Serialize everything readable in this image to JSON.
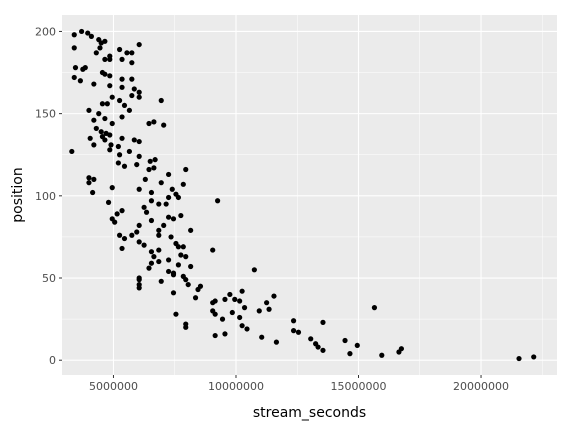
{
  "chart_data": {
    "type": "scatter",
    "xlabel": "stream_seconds",
    "ylabel": "position",
    "xlim": [
      2900000,
      23100000
    ],
    "ylim": [
      -9,
      210
    ],
    "x_ticks": [
      {
        "value": 5000000,
        "label": "5000000"
      },
      {
        "value": 10000000,
        "label": "10000000"
      },
      {
        "value": 15000000,
        "label": "15000000"
      },
      {
        "value": 20000000,
        "label": "20000000"
      }
    ],
    "y_ticks": [
      {
        "value": 0,
        "label": "0"
      },
      {
        "value": 50,
        "label": "50"
      },
      {
        "value": 100,
        "label": "100"
      },
      {
        "value": 150,
        "label": "150"
      },
      {
        "value": 200,
        "label": "200"
      }
    ],
    "grid": true,
    "colors": {
      "panel": "#ebebeb",
      "grid": "#ffffff",
      "point": "#000000"
    },
    "points": [
      [
        3400000,
        198
      ],
      [
        3700000,
        200
      ],
      [
        3950000,
        199
      ],
      [
        4100000,
        197
      ],
      [
        4400000,
        195
      ],
      [
        4500000,
        193
      ],
      [
        4650000,
        194
      ],
      [
        4450000,
        190
      ],
      [
        5250000,
        189
      ],
      [
        5550000,
        187
      ],
      [
        5750000,
        187
      ],
      [
        6050000,
        192
      ],
      [
        4300000,
        187
      ],
      [
        4850000,
        185
      ],
      [
        3400000,
        190
      ],
      [
        4650000,
        183
      ],
      [
        5350000,
        183
      ],
      [
        5750000,
        181
      ],
      [
        4850000,
        183
      ],
      [
        3450000,
        178
      ],
      [
        3750000,
        177
      ],
      [
        3850000,
        178
      ],
      [
        4550000,
        175
      ],
      [
        4650000,
        174
      ],
      [
        4850000,
        173
      ],
      [
        5350000,
        171
      ],
      [
        5750000,
        171
      ],
      [
        3400000,
        172
      ],
      [
        3650000,
        170
      ],
      [
        4200000,
        168
      ],
      [
        4850000,
        167
      ],
      [
        5350000,
        166
      ],
      [
        5850000,
        165
      ],
      [
        6050000,
        163
      ],
      [
        5750000,
        161
      ],
      [
        6050000,
        160
      ],
      [
        4950000,
        160
      ],
      [
        5250000,
        158
      ],
      [
        6950000,
        158
      ],
      [
        4550000,
        156
      ],
      [
        4750000,
        156
      ],
      [
        5450000,
        155
      ],
      [
        5650000,
        152
      ],
      [
        4000000,
        152
      ],
      [
        4400000,
        150
      ],
      [
        4200000,
        146
      ],
      [
        4650000,
        147
      ],
      [
        5350000,
        148
      ],
      [
        4950000,
        144
      ],
      [
        6450000,
        144
      ],
      [
        6650000,
        145
      ],
      [
        7050000,
        143
      ],
      [
        4300000,
        141
      ],
      [
        4500000,
        139
      ],
      [
        4700000,
        138
      ],
      [
        4850000,
        137
      ],
      [
        4550000,
        136
      ],
      [
        4650000,
        134
      ],
      [
        4050000,
        135
      ],
      [
        5350000,
        135
      ],
      [
        5850000,
        134
      ],
      [
        6050000,
        133
      ],
      [
        4200000,
        131
      ],
      [
        4900000,
        131
      ],
      [
        5200000,
        130
      ],
      [
        4850000,
        128
      ],
      [
        5650000,
        127
      ],
      [
        3300000,
        127
      ],
      [
        5250000,
        125
      ],
      [
        6050000,
        124
      ],
      [
        6500000,
        121
      ],
      [
        6700000,
        122
      ],
      [
        5200000,
        120
      ],
      [
        5450000,
        118
      ],
      [
        5950000,
        119
      ],
      [
        6450000,
        116
      ],
      [
        6650000,
        117
      ],
      [
        7250000,
        113
      ],
      [
        7950000,
        116
      ],
      [
        4000000,
        111
      ],
      [
        4200000,
        110
      ],
      [
        4000000,
        108
      ],
      [
        6300000,
        110
      ],
      [
        6950000,
        108
      ],
      [
        7400000,
        104
      ],
      [
        7850000,
        107
      ],
      [
        4950000,
        105
      ],
      [
        6050000,
        104
      ],
      [
        6550000,
        102
      ],
      [
        7550000,
        101
      ],
      [
        4150000,
        102
      ],
      [
        7250000,
        99
      ],
      [
        6550000,
        97
      ],
      [
        7650000,
        99
      ],
      [
        9250000,
        97
      ],
      [
        4800000,
        96
      ],
      [
        6250000,
        93
      ],
      [
        6850000,
        95
      ],
      [
        7150000,
        95
      ],
      [
        5350000,
        91
      ],
      [
        6350000,
        90
      ],
      [
        7250000,
        87
      ],
      [
        7750000,
        88
      ],
      [
        5150000,
        89
      ],
      [
        4950000,
        86
      ],
      [
        5050000,
        84
      ],
      [
        6550000,
        85
      ],
      [
        7450000,
        86
      ],
      [
        6050000,
        82
      ],
      [
        7050000,
        82
      ],
      [
        6850000,
        79
      ],
      [
        5950000,
        78
      ],
      [
        8150000,
        79
      ],
      [
        6850000,
        76
      ],
      [
        7350000,
        75
      ],
      [
        5250000,
        76
      ],
      [
        5450000,
        74
      ],
      [
        5750000,
        76
      ],
      [
        6050000,
        72
      ],
      [
        6250000,
        70
      ],
      [
        7550000,
        71
      ],
      [
        7650000,
        69
      ],
      [
        7850000,
        69
      ],
      [
        9050000,
        67
      ],
      [
        5350000,
        68
      ],
      [
        6550000,
        66
      ],
      [
        6850000,
        67
      ],
      [
        6650000,
        63
      ],
      [
        7750000,
        64
      ],
      [
        7950000,
        63
      ],
      [
        6550000,
        59
      ],
      [
        6850000,
        60
      ],
      [
        7250000,
        61
      ],
      [
        7650000,
        58
      ],
      [
        8150000,
        57
      ],
      [
        6450000,
        56
      ],
      [
        7250000,
        54
      ],
      [
        7450000,
        53
      ],
      [
        7850000,
        51
      ],
      [
        7450000,
        52
      ],
      [
        6050000,
        49
      ],
      [
        6050000,
        50
      ],
      [
        7950000,
        49
      ],
      [
        10750000,
        55
      ],
      [
        6950000,
        48
      ],
      [
        6050000,
        46
      ],
      [
        6050000,
        44
      ],
      [
        7450000,
        41
      ],
      [
        8450000,
        43
      ],
      [
        8550000,
        45
      ],
      [
        8050000,
        46
      ],
      [
        8350000,
        38
      ],
      [
        9050000,
        35
      ],
      [
        9150000,
        36
      ],
      [
        9550000,
        37
      ],
      [
        9750000,
        40
      ],
      [
        9950000,
        37
      ],
      [
        10250000,
        42
      ],
      [
        10150000,
        36
      ],
      [
        11250000,
        35
      ],
      [
        11550000,
        39
      ],
      [
        11350000,
        31
      ],
      [
        10950000,
        30
      ],
      [
        10350000,
        32
      ],
      [
        9050000,
        30
      ],
      [
        9150000,
        28
      ],
      [
        9850000,
        29
      ],
      [
        10150000,
        26
      ],
      [
        7550000,
        28
      ],
      [
        7950000,
        22
      ],
      [
        7950000,
        20
      ],
      [
        9450000,
        25
      ],
      [
        12350000,
        24
      ],
      [
        13550000,
        23
      ],
      [
        15650000,
        32
      ],
      [
        12350000,
        18
      ],
      [
        12550000,
        17
      ],
      [
        10250000,
        21
      ],
      [
        10450000,
        19
      ],
      [
        9550000,
        16
      ],
      [
        9150000,
        15
      ],
      [
        11050000,
        14
      ],
      [
        11650000,
        11
      ],
      [
        13050000,
        13
      ],
      [
        13250000,
        10
      ],
      [
        13350000,
        8
      ],
      [
        13550000,
        6
      ],
      [
        14450000,
        12
      ],
      [
        14650000,
        4
      ],
      [
        14950000,
        9
      ],
      [
        15950000,
        3
      ],
      [
        16650000,
        5
      ],
      [
        16750000,
        7
      ],
      [
        21550000,
        1
      ],
      [
        22150000,
        2
      ]
    ]
  }
}
